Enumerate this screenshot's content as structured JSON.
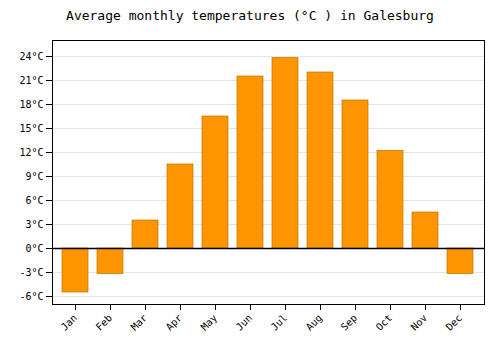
{
  "chart_data": {
    "type": "bar",
    "title": "Average monthly temperatures (°C ) in Galesburg",
    "categories": [
      "Jan",
      "Feb",
      "Mar",
      "Apr",
      "May",
      "Jun",
      "Jul",
      "Aug",
      "Sep",
      "Oct",
      "Nov",
      "Dec"
    ],
    "values": [
      -5.5,
      -3.2,
      3.5,
      10.5,
      16.5,
      21.5,
      23.8,
      22.0,
      18.5,
      12.2,
      4.5,
      -3.2
    ],
    "color": "#FF9500",
    "ylim": [
      -7,
      26
    ],
    "yticks": [
      {
        "value": -6,
        "label": "-6°C"
      },
      {
        "value": -3,
        "label": "-3°C"
      },
      {
        "value": 0,
        "label": "0°C"
      },
      {
        "value": 3,
        "label": "3°C"
      },
      {
        "value": 6,
        "label": "6°C"
      },
      {
        "value": 9,
        "label": "9°C"
      },
      {
        "value": 12,
        "label": "12°C"
      },
      {
        "value": 15,
        "label": "15°C"
      },
      {
        "value": 18,
        "label": "18°C"
      },
      {
        "value": 21,
        "label": "21°C"
      },
      {
        "value": 24,
        "label": "24°C"
      }
    ],
    "grid": true
  }
}
